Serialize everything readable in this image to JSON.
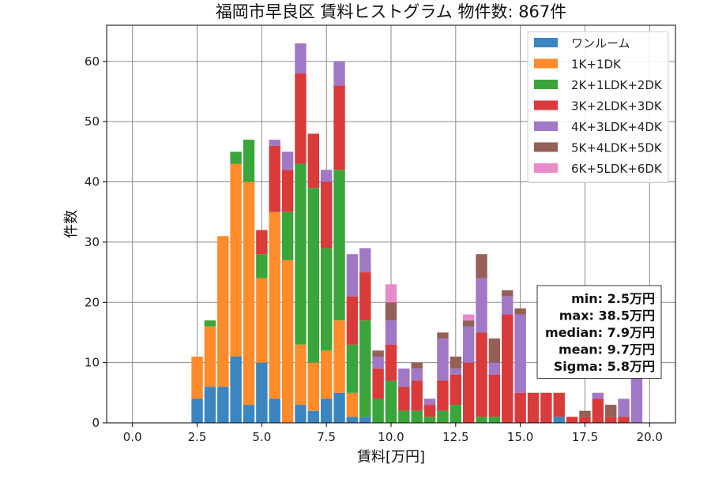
{
  "chart_data": {
    "type": "bar",
    "stacked": true,
    "title": "福岡市早良区 賃料ヒストグラム 物件数: 867件",
    "xlabel": "賃料[万円]",
    "ylabel": "件数",
    "xlim": [
      -1.0,
      21.0
    ],
    "ylim": [
      0,
      66
    ],
    "xticks": [
      "0.0",
      "2.5",
      "5.0",
      "7.5",
      "10.0",
      "12.5",
      "15.0",
      "17.5",
      "20.0"
    ],
    "yticks": [
      "0",
      "10",
      "20",
      "30",
      "40",
      "50",
      "60"
    ],
    "grid": true,
    "legend_position": "top-right",
    "bin_width": 0.5,
    "x": [
      2.5,
      3.0,
      3.5,
      4.0,
      4.5,
      5.0,
      5.5,
      6.0,
      6.5,
      7.0,
      7.5,
      8.0,
      8.5,
      9.0,
      9.5,
      10.0,
      10.5,
      11.0,
      11.5,
      12.0,
      12.5,
      13.0,
      13.5,
      14.0,
      14.5,
      15.0,
      15.5,
      16.0,
      16.5,
      17.0,
      17.5,
      18.0,
      18.5,
      19.0,
      19.5
    ],
    "series": [
      {
        "name": "ワンルーム",
        "color": "#3b85c0",
        "values": [
          4,
          6,
          6,
          11,
          3,
          10,
          4,
          0,
          3,
          2,
          4,
          5,
          1,
          1,
          0,
          0,
          0,
          0,
          0,
          0,
          0,
          0,
          0,
          0,
          0,
          0,
          0,
          0,
          1,
          0,
          0,
          0,
          0,
          0,
          0
        ]
      },
      {
        "name": "1K+1DK",
        "color": "#ff8b2a",
        "values": [
          7,
          10,
          25,
          32,
          37,
          14,
          31,
          27,
          10,
          8,
          8,
          12,
          4,
          0,
          0,
          0,
          0,
          0,
          0,
          0,
          0,
          0,
          0,
          0,
          0,
          0,
          0,
          0,
          0,
          0,
          0,
          0,
          0,
          0,
          0
        ]
      },
      {
        "name": "2K+1LDK+2DK",
        "color": "#3aa53a",
        "values": [
          0,
          1,
          0,
          2,
          7,
          4,
          0,
          8,
          30,
          29,
          17,
          25,
          8,
          16,
          4,
          7,
          2,
          2,
          1,
          2,
          3,
          0,
          1,
          1,
          0,
          0,
          0,
          0,
          0,
          0,
          0,
          0,
          0,
          0,
          0
        ]
      },
      {
        "name": "3K+2LDK+3DK",
        "color": "#d93a3a",
        "values": [
          0,
          0,
          0,
          0,
          0,
          4,
          11,
          7,
          15,
          9,
          11,
          14,
          8,
          8,
          5,
          6,
          4,
          5,
          2,
          5,
          5,
          10,
          14,
          7,
          18,
          5,
          5,
          5,
          4,
          1,
          1,
          4,
          1,
          1,
          0
        ]
      },
      {
        "name": "4K+3LDK+4DK",
        "color": "#a178c6",
        "values": [
          0,
          0,
          0,
          0,
          0,
          0,
          1,
          3,
          5,
          0,
          2,
          4,
          7,
          4,
          2,
          4,
          3,
          2,
          1,
          7,
          1,
          6,
          9,
          2,
          3,
          13,
          0,
          0,
          0,
          0,
          0,
          1,
          0,
          3,
          8
        ]
      },
      {
        "name": "5K+4LDK+5DK",
        "color": "#956058",
        "values": [
          0,
          0,
          0,
          0,
          0,
          0,
          0,
          0,
          0,
          0,
          0,
          0,
          0,
          0,
          1,
          3,
          0,
          1,
          0,
          1,
          2,
          1,
          4,
          4,
          1,
          1,
          0,
          0,
          0,
          0,
          1,
          0,
          2,
          0,
          0
        ]
      },
      {
        "name": "6K+5LDK+6DK",
        "color": "#e88ac9",
        "values": [
          0,
          0,
          0,
          0,
          0,
          0,
          0,
          0,
          0,
          0,
          0,
          0,
          0,
          0,
          0,
          3,
          0,
          0,
          0,
          0,
          0,
          1,
          0,
          0,
          0,
          0,
          0,
          0,
          0,
          0,
          0,
          0,
          0,
          0,
          0
        ]
      }
    ],
    "stats_box": [
      "min: 2.5万円",
      "max: 38.5万円",
      "median: 7.9万円",
      "mean: 9.7万円",
      "Sigma: 5.8万円"
    ]
  }
}
